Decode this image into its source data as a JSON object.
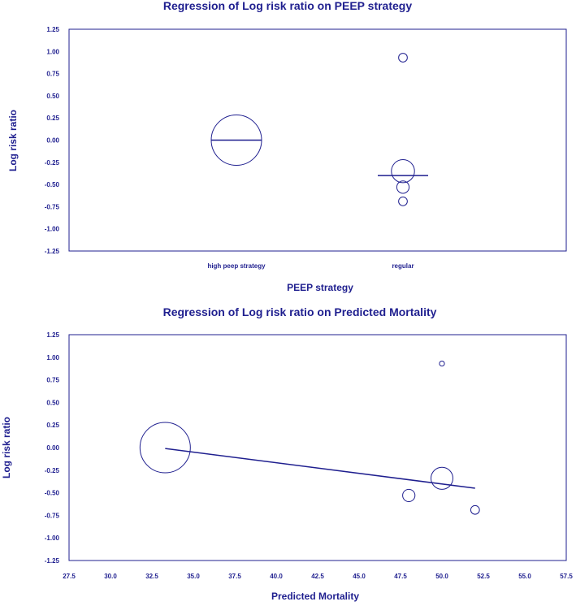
{
  "colors": {
    "ink": "#1f1f8f"
  },
  "chart_data": [
    {
      "type": "scatter",
      "title": "Regression of Log risk ratio on PEEP strategy",
      "xlabel": "PEEP strategy",
      "ylabel": "Log risk ratio",
      "categories": [
        "high peep strategy",
        "regular"
      ],
      "ylim": [
        -1.25,
        1.25
      ],
      "yticks": [
        "1.25",
        "1.00",
        "0.75",
        "0.50",
        "0.25",
        "0.00",
        "-0.25",
        "-0.50",
        "-0.75",
        "-1.00",
        "-1.25"
      ],
      "points": [
        {
          "category": "high peep strategy",
          "y": 0.0,
          "weight": 1.0
        },
        {
          "category": "regular",
          "y": 0.93,
          "weight": 0.03
        },
        {
          "category": "regular",
          "y": -0.35,
          "weight": 0.21
        },
        {
          "category": "regular",
          "y": -0.53,
          "weight": 0.06
        },
        {
          "category": "regular",
          "y": -0.69,
          "weight": 0.03
        }
      ],
      "point_offsets": [
        0,
        0,
        0,
        0,
        0
      ],
      "category_means": [
        {
          "category": "high peep strategy",
          "y": 0.0
        },
        {
          "category": "regular",
          "y": -0.4
        }
      ]
    },
    {
      "type": "scatter",
      "title": "Regression of Log risk ratio on Predicted Mortality",
      "xlabel": "Predicted Mortality",
      "ylabel": "Log risk ratio",
      "xlim": [
        27.5,
        57.5
      ],
      "ylim": [
        -1.25,
        1.25
      ],
      "xticks": [
        "27.5",
        "30.0",
        "32.5",
        "35.0",
        "37.5",
        "40.0",
        "42.5",
        "45.0",
        "47.5",
        "50.0",
        "52.5",
        "55.0",
        "57.5"
      ],
      "yticks": [
        "1.25",
        "1.00",
        "0.75",
        "0.50",
        "0.25",
        "0.00",
        "-0.25",
        "-0.50",
        "-0.75",
        "-1.00",
        "-1.25"
      ],
      "points": [
        {
          "x": 33.3,
          "y": 0.0,
          "weight": 1.0
        },
        {
          "x": 50.0,
          "y": 0.93,
          "weight": 0.01
        },
        {
          "x": 50.0,
          "y": -0.34,
          "weight": 0.19
        },
        {
          "x": 48.0,
          "y": -0.53,
          "weight": 0.06
        },
        {
          "x": 52.0,
          "y": -0.69,
          "weight": 0.03
        }
      ],
      "regression_line": {
        "x": [
          33.3,
          52.0
        ],
        "y": [
          -0.01,
          -0.45
        ]
      }
    }
  ]
}
